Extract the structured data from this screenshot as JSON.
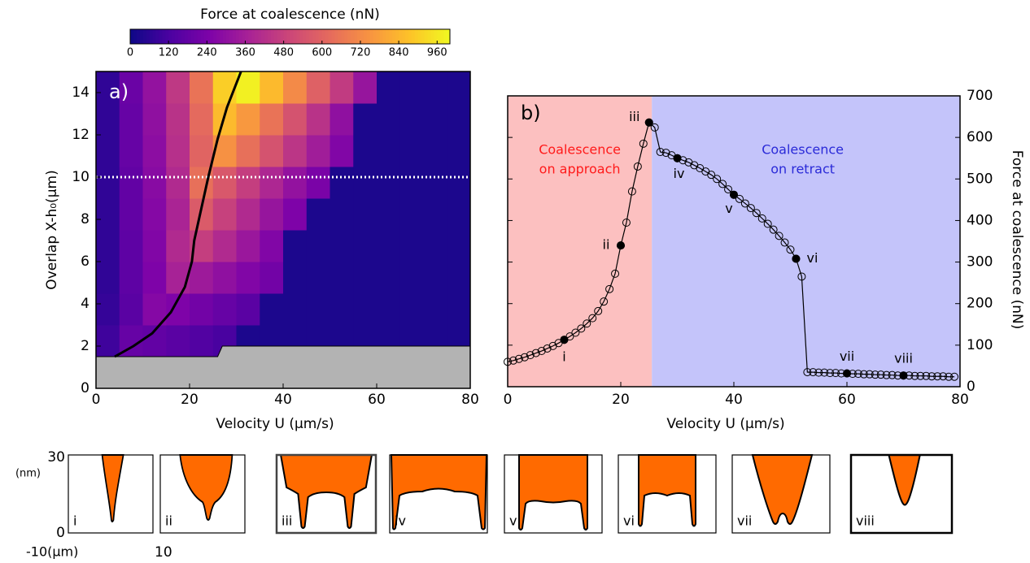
{
  "chart_data": [
    {
      "type": "heatmap",
      "annotation": "a)",
      "xlabel": "Velocity U (μm/s)",
      "ylabel": "Overlap X-h₀(μm)",
      "xlim": [
        0,
        80
      ],
      "ylim": [
        0,
        15
      ],
      "xticks": [
        0,
        20,
        40,
        60,
        80
      ],
      "yticks": [
        0,
        2,
        4,
        6,
        8,
        10,
        12,
        14
      ],
      "x_edges": [
        0,
        5,
        10,
        15,
        20,
        25,
        30,
        35,
        40,
        45,
        50,
        55,
        60,
        65,
        70,
        75,
        80
      ],
      "y_edges": [
        1.5,
        3,
        4.5,
        6,
        7.5,
        9,
        10.5,
        12,
        13.5,
        15
      ],
      "z": [
        [
          100,
          190,
          180,
          160,
          140,
          120,
          30,
          30,
          30,
          30,
          30,
          30,
          30,
          30,
          30,
          30
        ],
        [
          80,
          160,
          270,
          250,
          220,
          190,
          160,
          30,
          30,
          30,
          30,
          30,
          30,
          30,
          30,
          30
        ],
        [
          70,
          170,
          250,
          370,
          340,
          300,
          260,
          220,
          30,
          30,
          30,
          30,
          30,
          30,
          30,
          30
        ],
        [
          70,
          170,
          260,
          400,
          470,
          400,
          330,
          260,
          30,
          30,
          30,
          30,
          30,
          30,
          30,
          30
        ],
        [
          70,
          180,
          270,
          380,
          570,
          480,
          400,
          320,
          250,
          30,
          30,
          30,
          30,
          30,
          30,
          30
        ],
        [
          70,
          180,
          280,
          400,
          640,
          560,
          470,
          390,
          310,
          240,
          30,
          30,
          30,
          30,
          30,
          30
        ],
        [
          70,
          190,
          290,
          420,
          600,
          740,
          640,
          540,
          440,
          350,
          260,
          30,
          30,
          30,
          30,
          30
        ],
        [
          70,
          190,
          300,
          430,
          620,
          850,
          760,
          650,
          540,
          430,
          300,
          30,
          30,
          30,
          30,
          30
        ],
        [
          70,
          200,
          310,
          450,
          650,
          900,
          980,
          850,
          720,
          590,
          460,
          320,
          30,
          30,
          30,
          30
        ]
      ],
      "colorbar": {
        "title": "Force at coalescence (nN)",
        "clim": [
          0,
          1000
        ],
        "ticks": [
          0,
          120,
          240,
          360,
          480,
          600,
          720,
          840,
          960
        ],
        "colors": [
          "#0d0887",
          "#4c02a1",
          "#7e03a8",
          "#a92395",
          "#cc4778",
          "#e56b5d",
          "#f89441",
          "#fdc328",
          "#f0f921"
        ]
      },
      "excluded_region": {
        "color": "#b3b3b3",
        "x": [
          0,
          26,
          27,
          80,
          80,
          0
        ],
        "values": [
          1.5,
          1.5,
          2,
          2,
          0,
          0
        ]
      },
      "curve": {
        "color": "#000000",
        "x": [
          4,
          8,
          12,
          16,
          19,
          20.5,
          21,
          22,
          24,
          26,
          28,
          31
        ],
        "values": [
          1.5,
          2,
          2.6,
          3.6,
          4.8,
          6,
          7,
          8,
          10,
          11.8,
          13.3,
          15
        ]
      },
      "hline": {
        "color": "#ffffff",
        "value": 10
      }
    },
    {
      "type": "line",
      "annotation": "b)",
      "xlabel": "Velocity U (μm/s)",
      "ylabel": "Force at coalescence (nN)",
      "xlim": [
        0,
        80
      ],
      "y2lim": [
        0,
        700
      ],
      "xticks": [
        0,
        20,
        40,
        60,
        80
      ],
      "y2ticks": [
        0,
        100,
        200,
        300,
        400,
        500,
        600,
        700
      ],
      "regions": [
        {
          "lines": [
            "Coalescence",
            "on approach"
          ],
          "color": "#fcc0c0",
          "text_color": "#ff1a1a",
          "xlim": [
            0,
            25.5
          ]
        },
        {
          "lines": [
            "Coalescence",
            "on retract"
          ],
          "color": "#c4c4fa",
          "text_color": "#2a2ad8",
          "xlim": [
            25.5,
            80
          ]
        }
      ],
      "series": [
        {
          "axis": "y2",
          "color": "#000000",
          "x": [
            0,
            1,
            2,
            3,
            4,
            5,
            6,
            7,
            8,
            9,
            10,
            11,
            12,
            13,
            14,
            15,
            16,
            17,
            18,
            19,
            20,
            21,
            22,
            23,
            24,
            25,
            26,
            27,
            28,
            29,
            30,
            31,
            32,
            33,
            34,
            35,
            36,
            37,
            38,
            39,
            40,
            41,
            42,
            43,
            44,
            45,
            46,
            47,
            48,
            49,
            50,
            51,
            52,
            53,
            54,
            55,
            56,
            57,
            58,
            59,
            60,
            61,
            62,
            63,
            64,
            65,
            66,
            67,
            68,
            69,
            70,
            71,
            72,
            73,
            74,
            75,
            76,
            77,
            78,
            79
          ],
          "values": [
            60,
            63,
            67,
            71,
            76,
            81,
            86,
            92,
            98,
            105,
            113,
            121,
            130,
            140,
            152,
            165,
            182,
            205,
            235,
            272,
            340,
            395,
            470,
            530,
            585,
            636,
            624,
            565,
            563,
            557,
            550,
            545,
            540,
            533,
            526,
            518,
            510,
            500,
            488,
            475,
            462,
            452,
            441,
            430,
            418,
            405,
            392,
            378,
            363,
            347,
            330,
            308,
            265,
            35,
            35,
            34,
            34,
            33,
            33,
            32,
            32,
            31,
            31,
            30,
            30,
            29,
            29,
            28,
            28,
            27,
            27,
            27,
            26,
            26,
            26,
            25,
            25,
            25,
            24,
            24
          ]
        },
        {
          "axis": "y2",
          "color": "#000000",
          "x": [
            10,
            20,
            25,
            30,
            40,
            51,
            60,
            70
          ],
          "values": [
            113,
            340,
            636,
            550,
            462,
            308,
            32,
            27
          ],
          "labels": [
            "i",
            "ii",
            "iii",
            "iv",
            "v",
            "vi",
            "vii",
            "viii"
          ]
        }
      ]
    }
  ],
  "insets": {
    "labels": [
      "i",
      "ii",
      "iii",
      "iv",
      "v",
      "vi",
      "vii",
      "viii"
    ],
    "y_labels": [
      "30",
      "(nm)",
      "0"
    ],
    "x_labels": [
      "-10(μm)",
      "10"
    ]
  }
}
